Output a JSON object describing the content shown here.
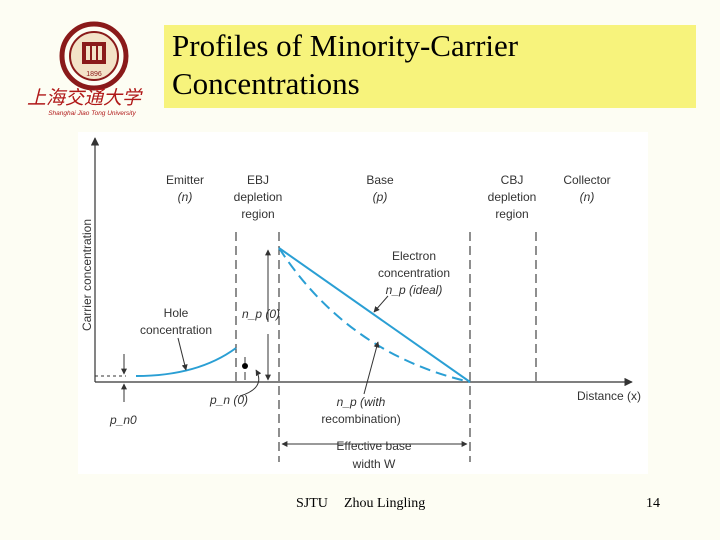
{
  "slide": {
    "title": "Profiles of Minority-Carrier Concentrations",
    "logo": {
      "chinese_text": "上海交通大学",
      "english_text": "Shanghai Jiao Tong University",
      "year_text": "1896"
    },
    "footer": {
      "left": "SJTU",
      "author": "Zhou Lingling",
      "page": "14"
    }
  },
  "diagram": {
    "y_axis_label": "Carrier concentration",
    "x_axis_label": "Distance (x)",
    "regions": {
      "emitter": [
        "Emitter",
        "(n)"
      ],
      "ebj": [
        "EBJ",
        "depletion",
        "region"
      ],
      "base": [
        "Base",
        "(p)"
      ],
      "cbj": [
        "CBJ",
        "depletion",
        "region"
      ],
      "collector": [
        "Collector",
        "(n)"
      ]
    },
    "labels": {
      "hole": [
        "Hole",
        "concentration"
      ],
      "electron": [
        "Electron",
        "concentration",
        "n_p (ideal)"
      ],
      "np0": "n_p (0)",
      "pn0": "p_n (0)",
      "pn0_eq": "p_n0",
      "recomb": [
        "n_p (with",
        "recombination)"
      ],
      "width": [
        "Effective base",
        "width W"
      ]
    }
  }
}
